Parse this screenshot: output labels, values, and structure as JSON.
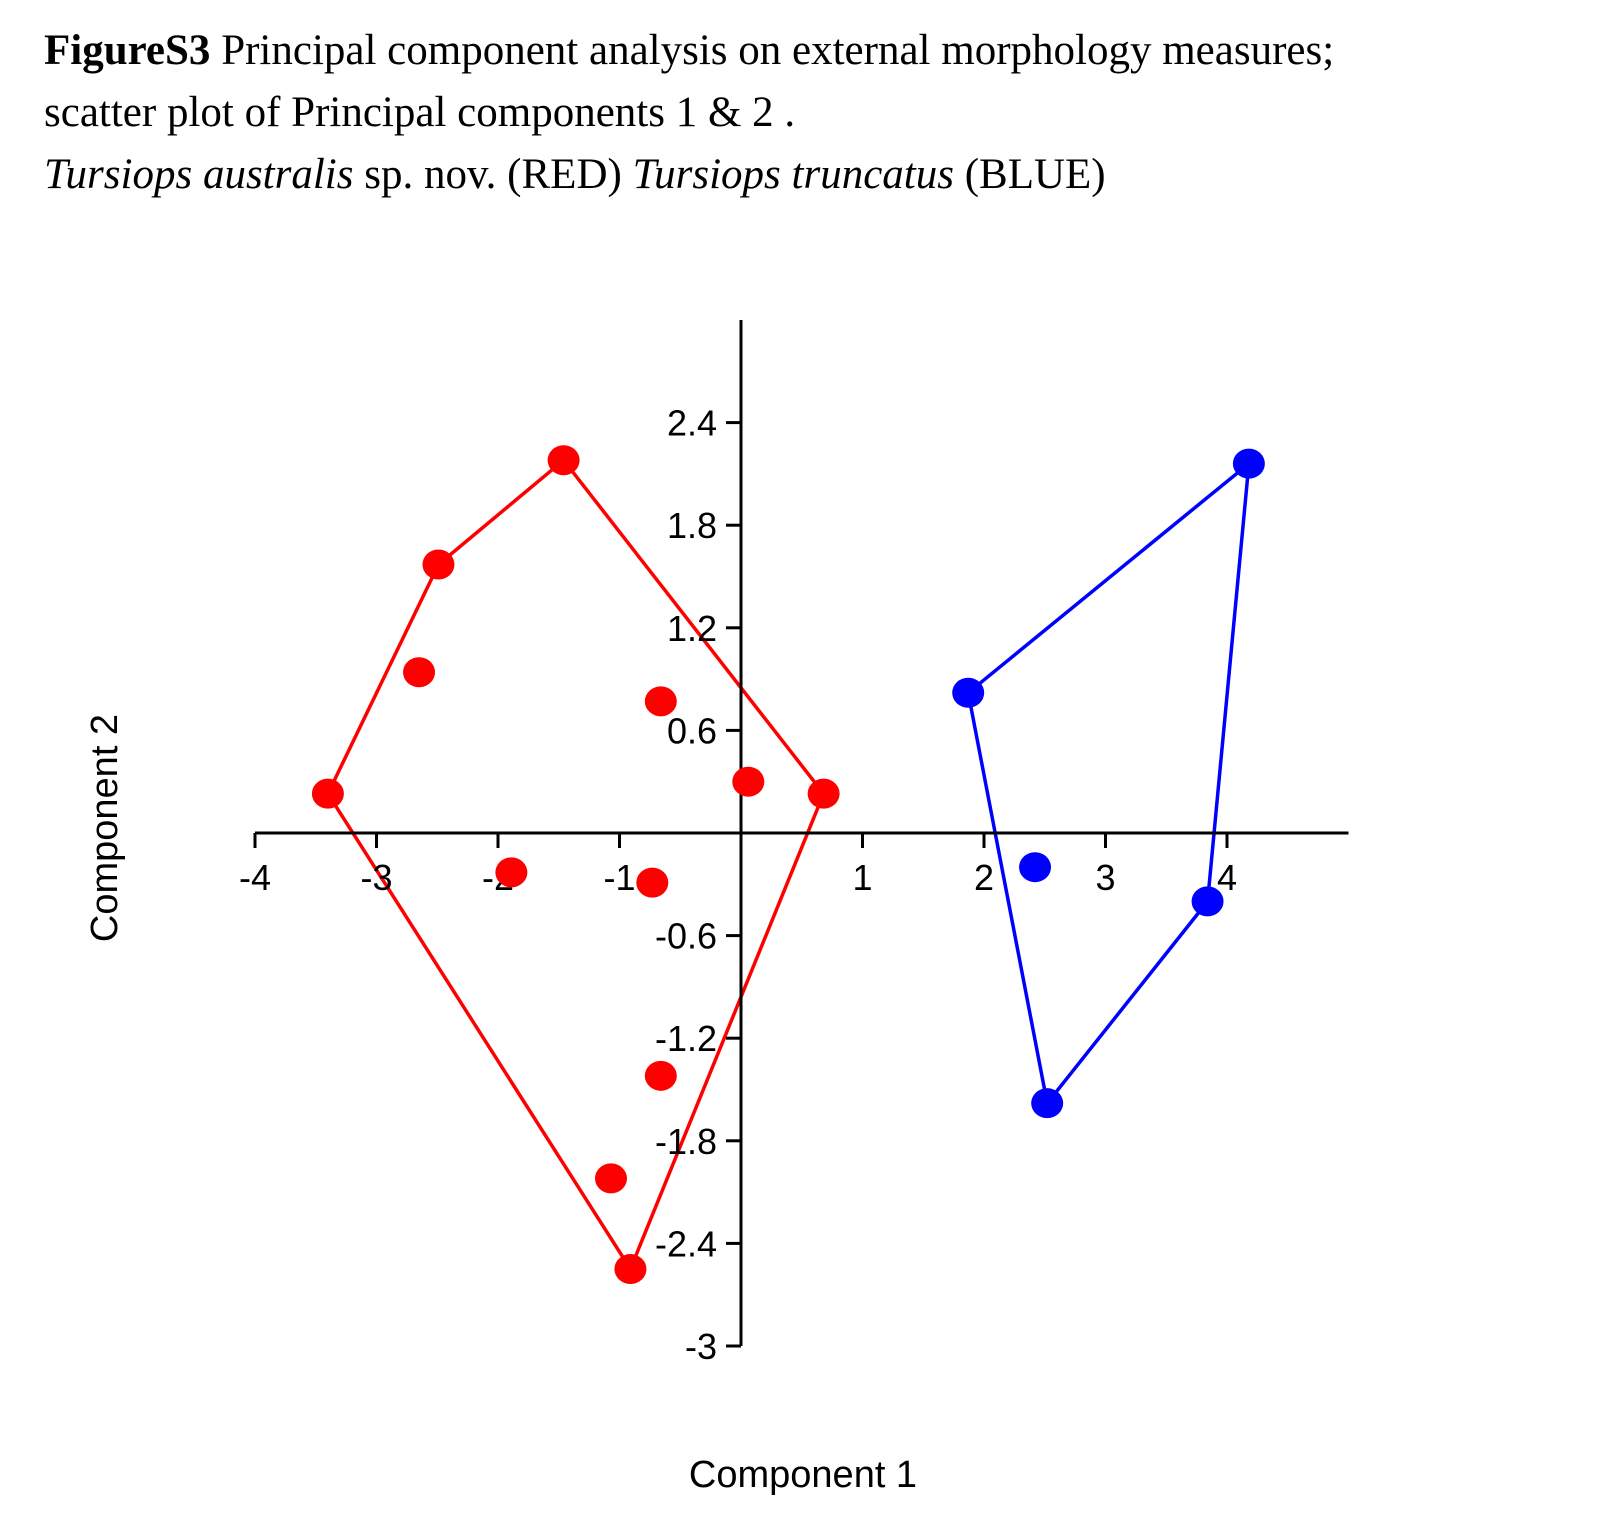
{
  "caption": {
    "line1_bold": "FigureS3",
    "line1_rest": " Principal component analysis on external morphology measures;",
    "line2": "scatter plot of Principal components 1 & 2 .",
    "line3_species1": "Tursiops australis",
    "line3_mid": " sp. nov. (RED) ",
    "line3_species2": "Tursiops truncatus",
    "line3_end": " (BLUE)"
  },
  "chart_data": {
    "type": "scatter",
    "xlabel": "Component 1",
    "ylabel": "Component 2",
    "xlim": [
      -4,
      5
    ],
    "ylim": [
      -3,
      3
    ],
    "x_ticks": [
      -4,
      -3,
      -2,
      -1,
      1,
      2,
      3,
      4
    ],
    "x_tick_labels": [
      "-4",
      "-3",
      "-2",
      "-1",
      "1",
      "2",
      "3",
      "4"
    ],
    "y_ticks": [
      2.4,
      1.8,
      1.2,
      0.6,
      -0.6,
      -1.2,
      -1.8,
      -2.4,
      -3
    ],
    "y_tick_labels": [
      "2.4",
      "1.8",
      "1.2",
      "0.6",
      "-0.6",
      "-1.2",
      "-1.8",
      "-2.4",
      "-3"
    ],
    "grid": false,
    "series": [
      {
        "color": "#ff0000",
        "points": [
          {
            "x": -3.4,
            "y": 0.23
          },
          {
            "x": -2.49,
            "y": 1.57
          },
          {
            "x": -1.46,
            "y": 2.18
          },
          {
            "x": 0.68,
            "y": 0.23
          },
          {
            "x": -0.91,
            "y": -2.55
          },
          {
            "x": -2.65,
            "y": 0.94
          },
          {
            "x": -0.66,
            "y": 0.77
          },
          {
            "x": 0.06,
            "y": 0.3
          },
          {
            "x": -1.89,
            "y": -0.23
          },
          {
            "x": -0.73,
            "y": -0.29
          },
          {
            "x": -0.66,
            "y": -1.42
          },
          {
            "x": -1.07,
            "y": -2.02
          }
        ],
        "hull": [
          {
            "x": -3.4,
            "y": 0.23
          },
          {
            "x": -2.49,
            "y": 1.57
          },
          {
            "x": -1.46,
            "y": 2.18
          },
          {
            "x": 0.68,
            "y": 0.23
          },
          {
            "x": -0.91,
            "y": -2.55
          }
        ]
      },
      {
        "color": "#0000ff",
        "points": [
          {
            "x": 1.87,
            "y": 0.82
          },
          {
            "x": 4.18,
            "y": 2.16
          },
          {
            "x": 3.84,
            "y": -0.4
          },
          {
            "x": 2.52,
            "y": -1.58
          },
          {
            "x": 2.42,
            "y": -0.2
          }
        ],
        "hull": [
          {
            "x": 1.87,
            "y": 0.82
          },
          {
            "x": 4.18,
            "y": 2.16
          },
          {
            "x": 3.84,
            "y": -0.4
          },
          {
            "x": 2.52,
            "y": -1.58
          }
        ]
      }
    ]
  }
}
